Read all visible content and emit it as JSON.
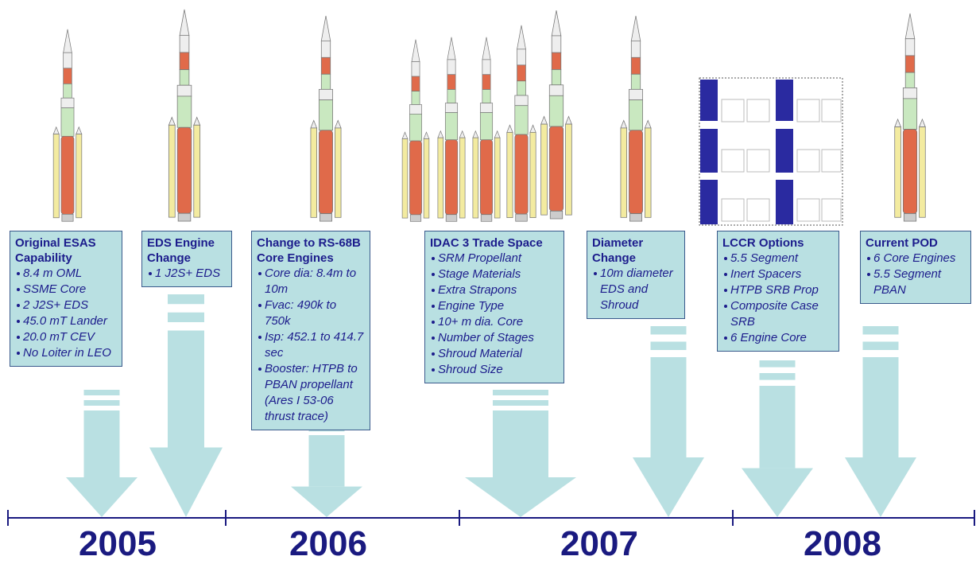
{
  "stages": [
    {
      "title": "Original ESAS Capability",
      "items": [
        "8.4 m OML",
        "SSME Core",
        "2 J2S+ EDS",
        "45.0 mT Lander",
        "20.0 mT CEV",
        "No Loiter in LEO"
      ]
    },
    {
      "title": "EDS Engine Change",
      "items": [
        "1 J2S+ EDS"
      ]
    },
    {
      "title": "Change to RS-68B Core Engines",
      "items": [
        "Core dia: 8.4m to 10m",
        "Fvac: 490k to 750k",
        "Isp: 452.1 to 414.7 sec",
        "Booster: HTPB to PBAN propellant (Ares I 53-06 thrust trace)"
      ]
    },
    {
      "title": "IDAC 3 Trade Space",
      "items": [
        "SRM Propellant",
        "Stage Materials",
        "Extra Strapons",
        "Engine Type",
        "10+ m dia. Core",
        "Number of Stages",
        "Shroud Material",
        "Shroud Size"
      ]
    },
    {
      "title": "Diameter Change",
      "items": [
        "10m diameter EDS and Shroud"
      ]
    },
    {
      "title": "LCCR Options",
      "items": [
        "5.5 Segment",
        "Inert Spacers",
        "HTPB SRB Prop",
        "Composite Case SRB",
        "6 Engine Core"
      ]
    },
    {
      "title": "Current POD",
      "items": [
        "6 Core Engines",
        "5.5 Segment PBAN"
      ]
    }
  ],
  "years": [
    "2005",
    "2006",
    "2007",
    "2008"
  ]
}
